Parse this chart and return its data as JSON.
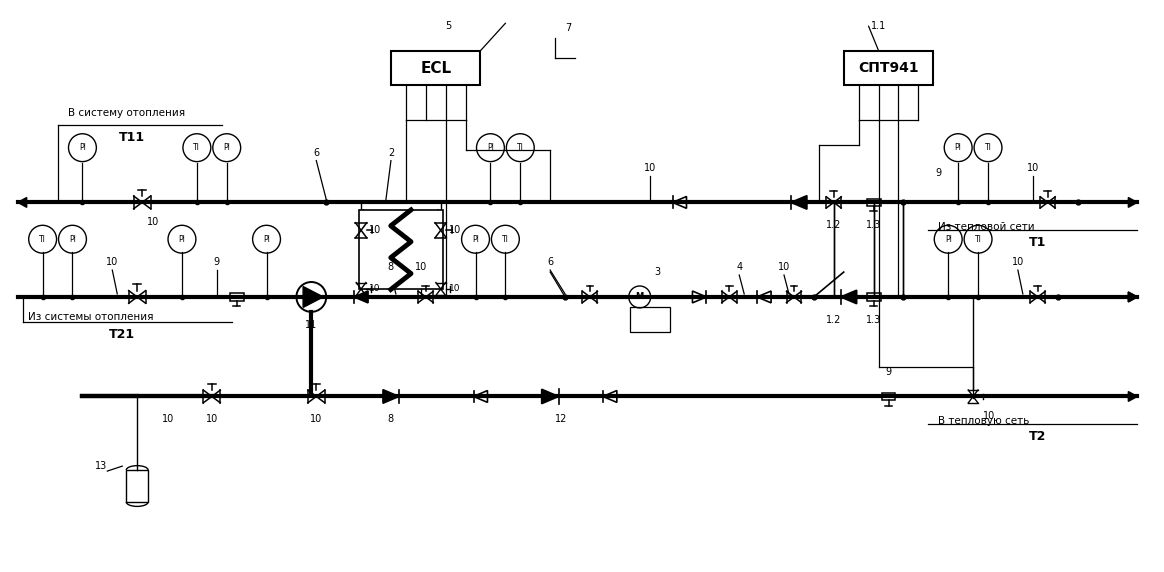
{
  "bg_color": "#ffffff",
  "lc": "#000000",
  "fig_w": 11.64,
  "fig_h": 5.72,
  "dpi": 100,
  "xlim": [
    0,
    116.4
  ],
  "ylim": [
    0,
    57.2
  ],
  "Y_TOP": 37.0,
  "Y_MID": 27.5,
  "Y_BOT": 17.5,
  "thick_lw": 3.0,
  "thin_lw": 1.0,
  "v_sistema": "В систему отопления",
  "iz_sistemy": "Из системы отопления",
  "v_teplovuyu": "В тепловую сеть",
  "iz_teplovoy": "Из тепловой сети"
}
